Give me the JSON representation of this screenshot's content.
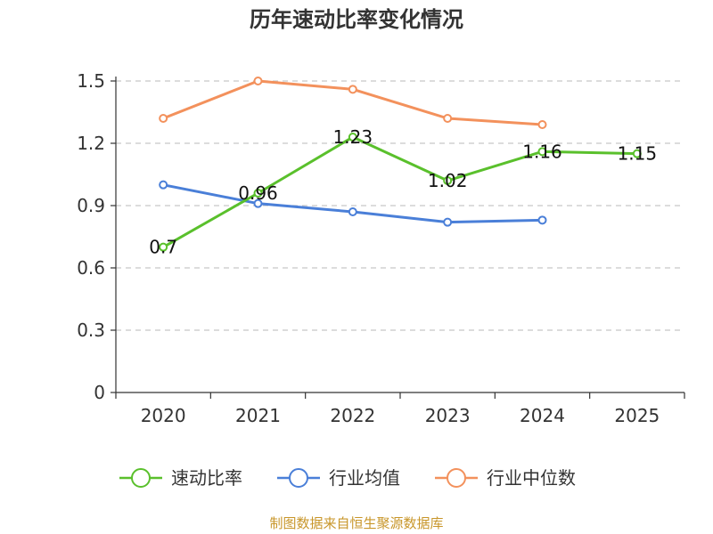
{
  "chart_data": {
    "type": "line",
    "title": "历年速动比率变化情况",
    "categories": [
      "2020",
      "2021",
      "2022",
      "2023",
      "2024",
      "2025"
    ],
    "ylim": [
      0,
      1.5
    ],
    "yticks": [
      0,
      0.3,
      0.6,
      0.9,
      1.2,
      1.5
    ],
    "ytick_labels": [
      "0",
      "0.3",
      "0.6",
      "0.9",
      "1.2",
      "1.5"
    ],
    "grid": true,
    "legend_position": "bottom-center",
    "series": [
      {
        "name": "速动比率",
        "color": "#5ac02c",
        "values": [
          0.7,
          0.96,
          1.23,
          1.02,
          1.16,
          1.15
        ],
        "data_labels": [
          "0.7",
          "0.96",
          "1.23",
          "1.02",
          "1.16",
          "1.15"
        ]
      },
      {
        "name": "行业均值",
        "color": "#4a7fd8",
        "values": [
          1.0,
          0.91,
          0.87,
          0.82,
          0.83,
          null
        ]
      },
      {
        "name": "行业中位数",
        "color": "#f3915c",
        "values": [
          1.32,
          1.5,
          1.46,
          1.32,
          1.29,
          null
        ]
      }
    ]
  },
  "source": "制图数据来自恒生聚源数据库"
}
